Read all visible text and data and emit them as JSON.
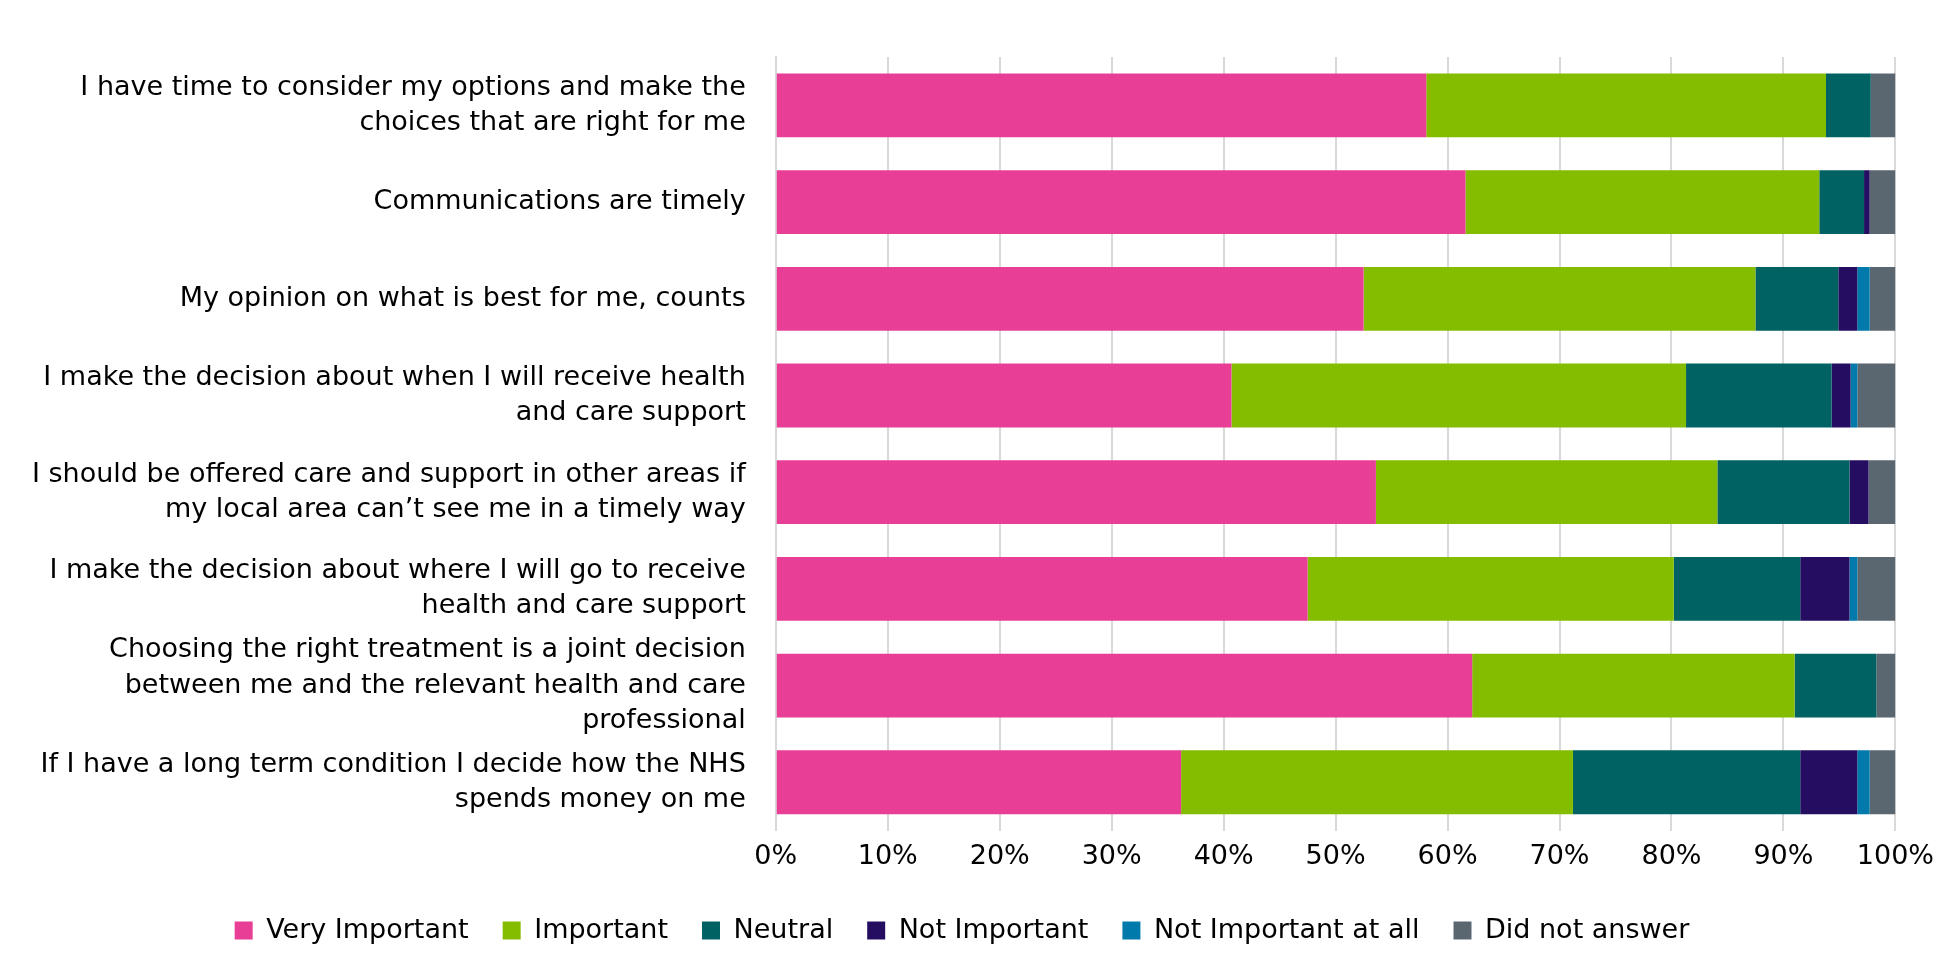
{
  "chart_data": {
    "type": "bar",
    "orientation": "horizontal",
    "stacked": true,
    "legend": "bottom",
    "grid": "x",
    "categories": [
      "I have time to consider my options and make the choices that are right for me",
      "Communications are timely",
      "My opinion on what is best for me, counts",
      "I make the decision about when I will receive health and care support",
      "I should be offered care and support in other areas if my local area can’t see me in a timely way",
      "I make the decision about where I will go to receive health and care support",
      "Choosing the right treatment is a joint decision between me and the relevant health and care professional",
      "If I have a long term condition I decide how the NHS spends money on me"
    ],
    "xlim": [
      0,
      100
    ],
    "xticks": [
      {
        "value": 0,
        "label": "0%"
      },
      {
        "value": 10,
        "label": "10%"
      },
      {
        "value": 20,
        "label": "20%"
      },
      {
        "value": 30,
        "label": "30%"
      },
      {
        "value": 40,
        "label": "40%"
      },
      {
        "value": 50,
        "label": "50%"
      },
      {
        "value": 60,
        "label": "60%"
      },
      {
        "value": 70,
        "label": "70%"
      },
      {
        "value": 80,
        "label": "80%"
      },
      {
        "value": 90,
        "label": "90%"
      },
      {
        "value": 100,
        "label": "100%"
      }
    ],
    "series": [
      {
        "name": "Very Important",
        "color": "#e83e96",
        "values": [
          58.1,
          61.6,
          52.5,
          40.7,
          53.6,
          47.5,
          62.2,
          36.2
        ]
      },
      {
        "name": "Important",
        "color": "#84bd00",
        "values": [
          35.7,
          31.6,
          35.0,
          40.6,
          30.5,
          32.7,
          28.8,
          35.0
        ]
      },
      {
        "name": "Neutral",
        "color": "#006262",
        "values": [
          4.0,
          4.0,
          7.4,
          13.0,
          11.8,
          11.3,
          7.3,
          20.3
        ]
      },
      {
        "name": "Not Important",
        "color": "#250e62",
        "values": [
          0,
          0.5,
          1.7,
          1.7,
          1.7,
          4.4,
          0,
          5.1
        ]
      },
      {
        "name": "Not Important at all",
        "color": "#0079ab",
        "values": [
          0,
          0,
          1.1,
          0.6,
          0,
          0.7,
          0,
          1.1
        ]
      },
      {
        "name": "Did not answer",
        "color": "#5b6770",
        "values": [
          2.2,
          2.3,
          2.3,
          3.4,
          2.4,
          3.4,
          1.7,
          2.3
        ]
      }
    ]
  }
}
